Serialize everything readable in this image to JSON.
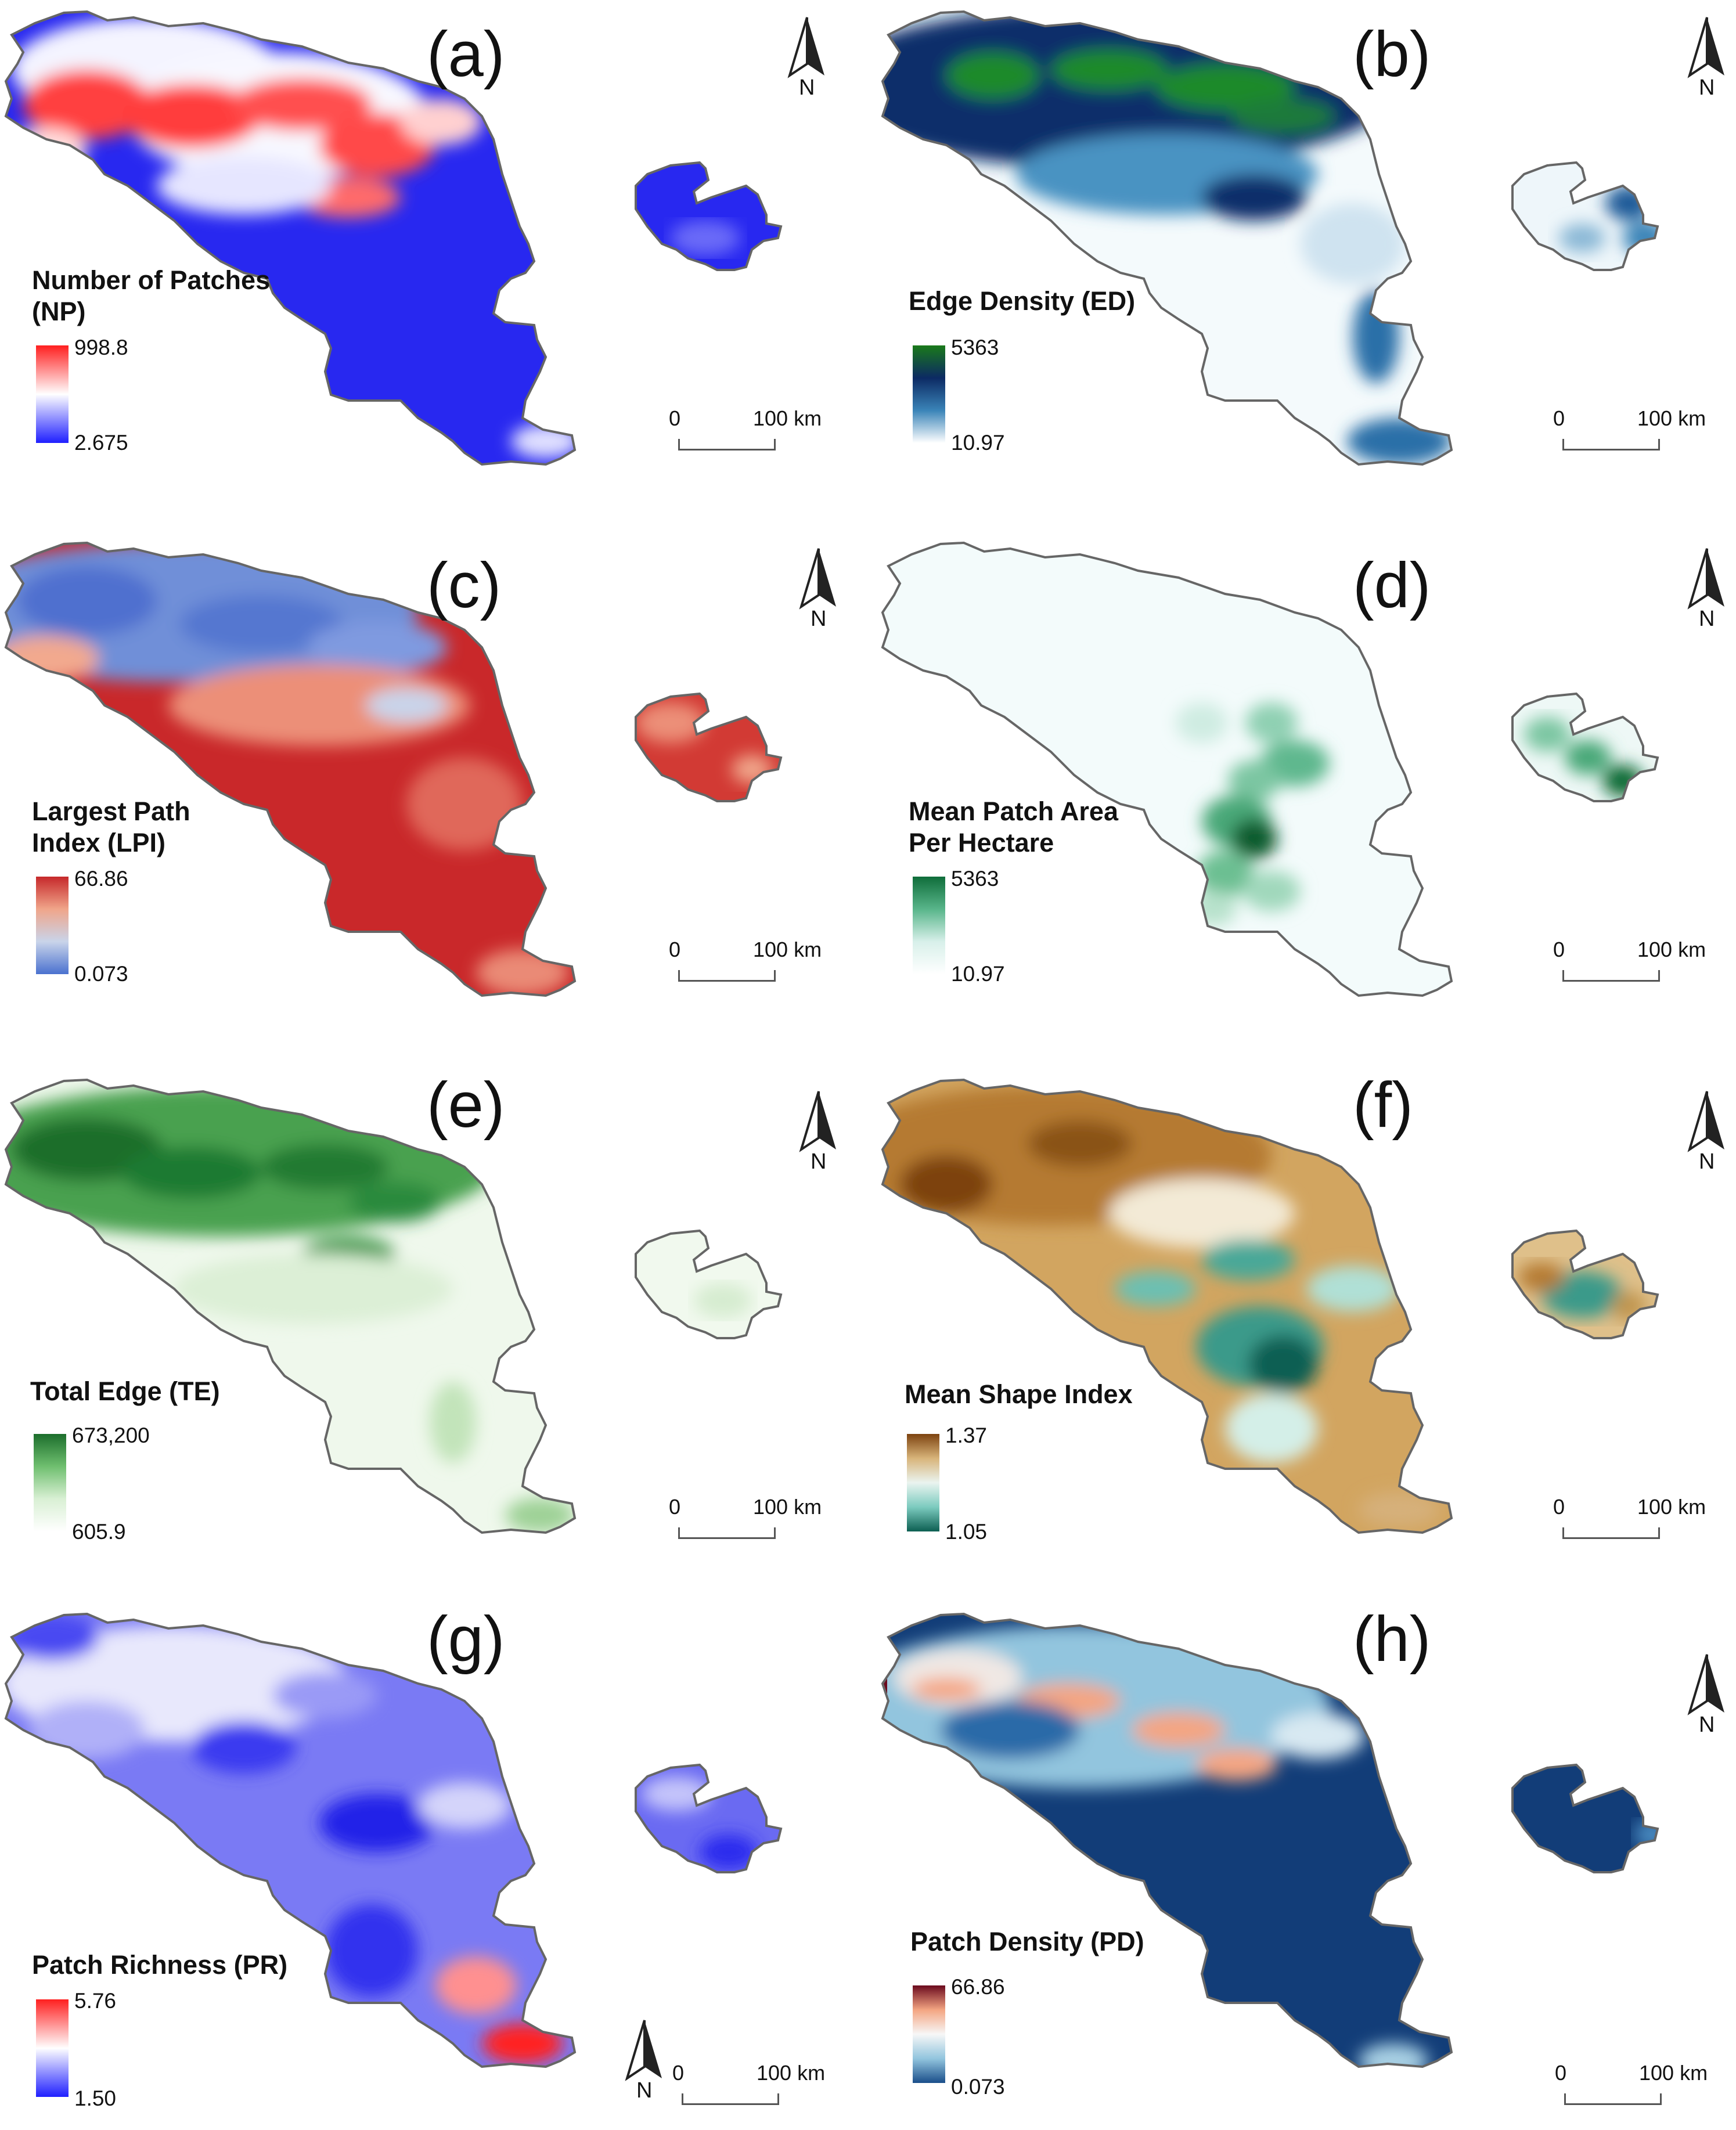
{
  "shared": {
    "north_label": "N",
    "scale_zero": "0",
    "scale_distance": "100 km",
    "boundary_color": "#666666"
  },
  "panels": [
    {
      "letter": "(a)",
      "legend_title": "Number of Patches\n(NP)",
      "max": "998.8",
      "min": "2.675",
      "colors": [
        "#ff1f1f",
        "#ffffff",
        "#1f1fff"
      ],
      "pattern": "a"
    },
    {
      "letter": "(b)",
      "legend_title": "Edge Density (ED)",
      "max": "5363",
      "min": "10.97",
      "colors": [
        "#1a7a1a",
        "#0c2a63",
        "#3a84b8",
        "#ffffff"
      ],
      "pattern": "b"
    },
    {
      "letter": "(c)",
      "legend_title": "Largest Path\nIndex (LPI)",
      "max": "66.86",
      "min": "0.073",
      "colors": [
        "#c6282a",
        "#f0a58a",
        "#c9d4ea",
        "#4a71cf"
      ],
      "pattern": "c"
    },
    {
      "letter": "(d)",
      "legend_title": "Mean Patch Area\nPer Hectare",
      "max": "5363",
      "min": "10.97",
      "colors": [
        "#0f6d3a",
        "#58b58a",
        "#d8f0ea",
        "#ffffff"
      ],
      "pattern": "d"
    },
    {
      "letter": "(e)",
      "legend_title": "Total Edge (TE)",
      "max": "673,200",
      "min": "605.9",
      "colors": [
        "#1c6e2c",
        "#6fbf6f",
        "#d9f0d4",
        "#ffffff"
      ],
      "pattern": "e"
    },
    {
      "letter": "(f)",
      "legend_title": "Mean Shape Index",
      "max": "1.37",
      "min": "1.05",
      "colors": [
        "#7d4310",
        "#d8b47a",
        "#eaf4f0",
        "#7ccbbf",
        "#0c5f52"
      ],
      "pattern": "f"
    },
    {
      "letter": "(g)",
      "legend_title": "Patch Richness (PR)",
      "max": "5.76",
      "min": "1.50",
      "colors": [
        "#ff1f1f",
        "#ffffff",
        "#1f1fff"
      ],
      "pattern": "g"
    },
    {
      "letter": "(h)",
      "legend_title": "Patch Density (PD)",
      "max": "66.86",
      "min": "0.073",
      "colors": [
        "#6b0a1e",
        "#f4a582",
        "#f7f7f7",
        "#92c5de",
        "#1a4e8a"
      ],
      "pattern": "h"
    }
  ]
}
